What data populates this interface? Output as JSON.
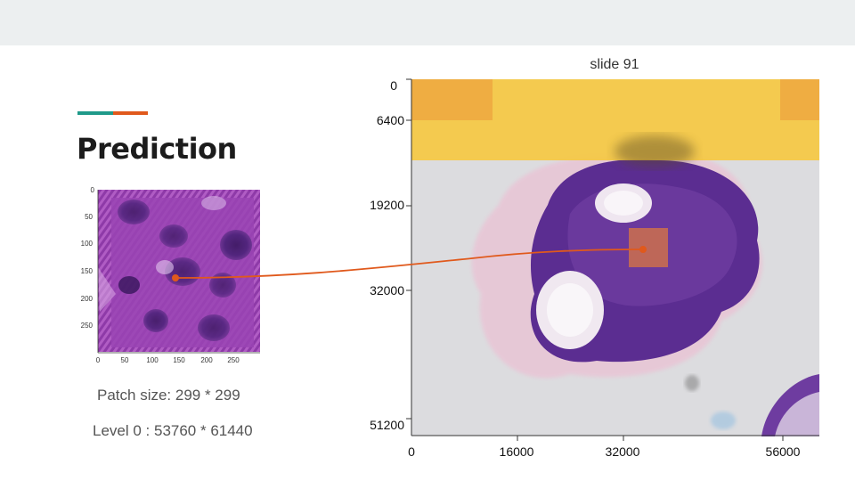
{
  "title": "Prediction",
  "patch_info": "Patch size: 299 * 299",
  "level_info": "Level 0 : 53760 *  61440",
  "slide": {
    "title": "slide 91",
    "y_ticks": [
      "0",
      "6400",
      "19200",
      "32000",
      "51200"
    ],
    "x_ticks": [
      "0",
      "16000",
      "32000",
      "56000"
    ]
  },
  "patch": {
    "y_ticks": [
      "0",
      "50",
      "100",
      "150",
      "200",
      "250"
    ],
    "x_ticks": [
      "0",
      "50",
      "100",
      "150",
      "200",
      "250"
    ]
  },
  "colors": {
    "accent_teal": "#1f9a8a",
    "accent_orange": "#e0591c",
    "highlight_yellow": "#f5c842",
    "pointer_orange": "#e0591c",
    "tissue_purple": "#5b2d91",
    "patch_magenta": "#9b3fb0"
  }
}
